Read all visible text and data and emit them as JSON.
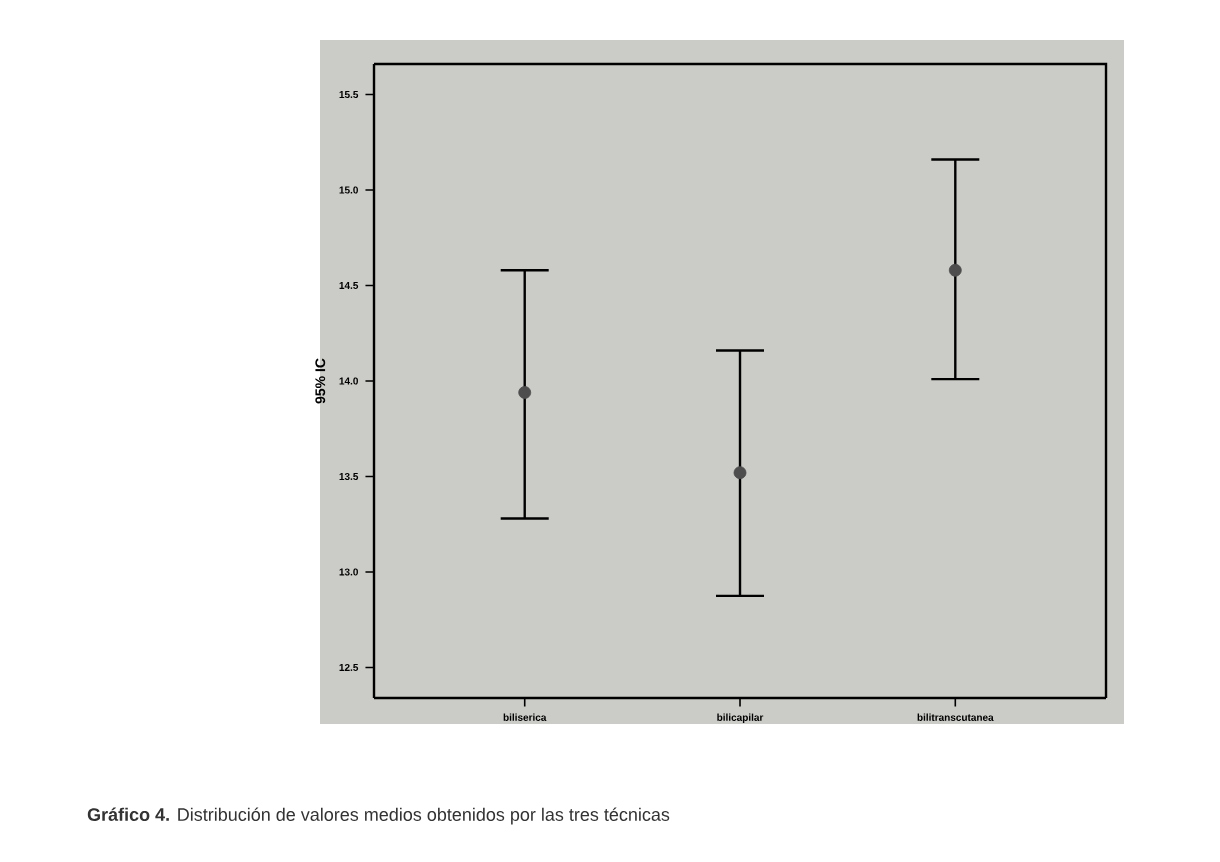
{
  "chart_data": {
    "type": "scatter",
    "ylabel": "95% IC",
    "categories": [
      "biliserica",
      "bilicapilar",
      "bilitranscutanea"
    ],
    "values": [
      13.94,
      13.52,
      14.58
    ],
    "errors": [
      [
        13.28,
        14.58
      ],
      [
        12.875,
        14.16
      ],
      [
        14.01,
        15.16
      ]
    ],
    "color": "#4d4d4d",
    "marker": "circle",
    "ylim": [
      12.34,
      15.66
    ],
    "yticks": [
      12.5,
      {
        "value": 13,
        "label": "13.0"
      },
      13.5,
      {
        "value": 14,
        "label": "14.0"
      },
      14.5,
      {
        "value": 15,
        "label": "15.0"
      },
      15.5
    ],
    "annotations": [
      "**Gráfico 4.** Distribución de valores medios obtenidos por las tres técnicas"
    ]
  }
}
